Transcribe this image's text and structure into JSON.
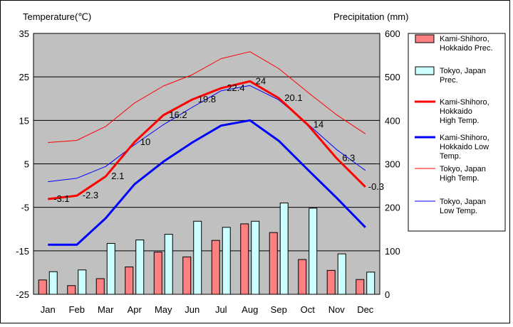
{
  "chart_data": {
    "type": "bar+line",
    "title": "",
    "left_axis": {
      "label": "Temperature(℃)",
      "range": [
        -25,
        35
      ],
      "ticks": [
        35,
        25,
        15,
        5,
        -5,
        -15,
        -25
      ]
    },
    "right_axis": {
      "label": "Precipitation (mm)",
      "range": [
        0,
        600
      ],
      "ticks": [
        600,
        500,
        400,
        300,
        200,
        100,
        0
      ]
    },
    "categories": [
      "Jan",
      "Feb",
      "Mar",
      "Apr",
      "May",
      "Jun",
      "Jul",
      "Aug",
      "Sep",
      "Oct",
      "Nov",
      "Dec"
    ],
    "grid": true,
    "legend_position": "right",
    "bar_series": [
      {
        "name": "Kami-Shihoro, Hokkaido Prec.",
        "axis": "right",
        "color": "#ff8080",
        "values": [
          33,
          20,
          36,
          63,
          97,
          86,
          124,
          162,
          142,
          80,
          55,
          34
        ]
      },
      {
        "name": "Tokyo, Japan Prec.",
        "axis": "right",
        "color": "#ccffff",
        "values": [
          52,
          56,
          117,
          125,
          138,
          168,
          154,
          168,
          210,
          198,
          93,
          51
        ]
      }
    ],
    "line_series": [
      {
        "name": "Kami-Shihoro, Hokkaido High Temp.",
        "axis": "left",
        "color": "#ff0000",
        "width": 3,
        "values": [
          -3.1,
          -2.3,
          2.1,
          10,
          16.2,
          19.8,
          22.4,
          24,
          20.1,
          14,
          6.3,
          -0.3
        ],
        "labels": [
          "-3.1",
          "-2.3",
          "2.1",
          "10",
          "16.2",
          "19.8",
          "22.4",
          "24",
          "20.1",
          "14",
          "6.3",
          "-0.3"
        ]
      },
      {
        "name": "Kami-Shihoro, Hokkaido Low Temp.",
        "axis": "left",
        "color": "#0000ff",
        "width": 3,
        "values": [
          -13.6,
          -13.6,
          -7.5,
          0.3,
          5.5,
          9.9,
          13.8,
          15.0,
          10.3,
          3.7,
          -2.8,
          -9.6
        ]
      },
      {
        "name": "Tokyo, Japan High Temp.",
        "axis": "left",
        "color": "#ff0000",
        "width": 1,
        "values": [
          9.9,
          10.4,
          13.6,
          19.0,
          22.9,
          25.5,
          29.2,
          30.8,
          26.9,
          21.5,
          16.3,
          11.9
        ]
      },
      {
        "name": "Tokyo, Japan Low Temp.",
        "axis": "left",
        "color": "#0000ff",
        "width": 1,
        "values": [
          0.9,
          1.7,
          4.4,
          9.4,
          14.0,
          18.0,
          21.8,
          23.0,
          19.7,
          14.2,
          8.3,
          3.5
        ]
      }
    ],
    "legend": [
      {
        "kind": "bar",
        "series": "Kami-Shihoro, Hokkaido Prec.",
        "lines": [
          "Kami-Shihoro,",
          "Hokkaido Prec."
        ]
      },
      {
        "kind": "bar",
        "series": "Tokyo, Japan Prec.",
        "lines": [
          "Tokyo, Japan",
          "Prec."
        ]
      },
      {
        "kind": "line",
        "series": "Kami-Shihoro, Hokkaido High Temp.",
        "lines": [
          "Kami-Shihoro,",
          "Hokkaido",
          "High Temp."
        ]
      },
      {
        "kind": "line",
        "series": "Kami-Shihoro, Hokkaido Low Temp.",
        "lines": [
          "Kami-Shihoro,",
          "Hokkaido Low",
          "Temp."
        ]
      },
      {
        "kind": "line",
        "series": "Tokyo, Japan High Temp.",
        "lines": [
          "Tokyo, Japan",
          "High Temp."
        ]
      },
      {
        "kind": "line",
        "series": "Tokyo, Japan Low Temp.",
        "lines": [
          "Tokyo, Japan",
          "Low Temp."
        ]
      }
    ]
  }
}
